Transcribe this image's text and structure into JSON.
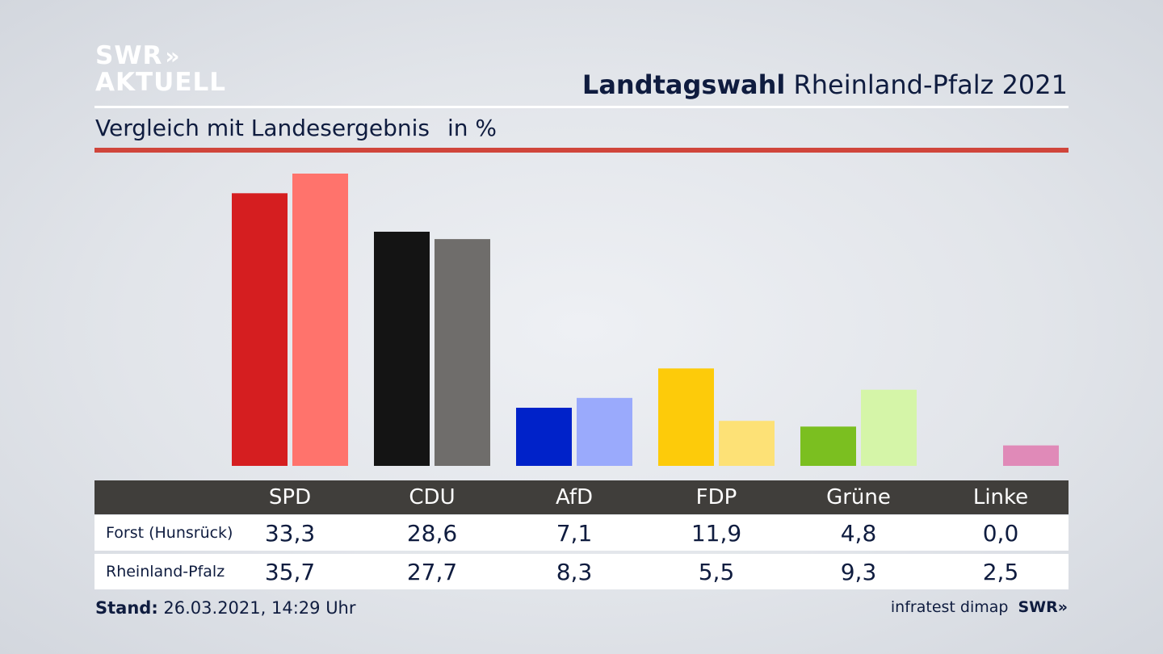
{
  "brand": {
    "logo_line1": "SWR",
    "logo_line2": "AKTUELL",
    "logo_chevrons": "»"
  },
  "header": {
    "title_bold": "Landtagswahl",
    "title_rest": "Rheinland-Pfalz 2021"
  },
  "subheader": {
    "text": "Vergleich mit Landesergebnis",
    "unit": "in %"
  },
  "colors": {
    "accent_line": "#d0453b",
    "table_header_bg": "#403e3b"
  },
  "chart_data": {
    "type": "bar",
    "categories": [
      "SPD",
      "CDU",
      "AfD",
      "FDP",
      "Grüne",
      "Linke"
    ],
    "series": [
      {
        "name": "Forst (Hunsrück)",
        "values": [
          33.3,
          28.6,
          7.1,
          11.9,
          4.8,
          0.0
        ],
        "colors": [
          "#d51e20",
          "#141414",
          "#0022c9",
          "#fdcb0a",
          "#7bbf20",
          "#e08ab8"
        ]
      },
      {
        "name": "Rheinland-Pfalz",
        "values": [
          35.7,
          27.7,
          8.3,
          5.5,
          9.3,
          2.5
        ],
        "colors": [
          "#ff736c",
          "#6f6d6b",
          "#9aaafc",
          "#fde176",
          "#d5f5a8",
          "#e08ab8"
        ]
      }
    ],
    "value_labels": [
      [
        "33,3",
        "28,6",
        "7,1",
        "11,9",
        "4,8",
        "0,0"
      ],
      [
        "35,7",
        "27,7",
        "8,3",
        "5,5",
        "9,3",
        "2,5"
      ]
    ],
    "title": "Landtagswahl Rheinland-Pfalz 2021",
    "subtitle": "Vergleich mit Landesergebnis",
    "ylabel": "in %",
    "ylim": [
      0,
      36
    ],
    "grid": false,
    "legend": "table-below"
  },
  "footer": {
    "stand_label": "Stand:",
    "stand_value": "26.03.2021, 14:29 Uhr",
    "source": "infratest dimap",
    "source_brand": "SWR»"
  }
}
